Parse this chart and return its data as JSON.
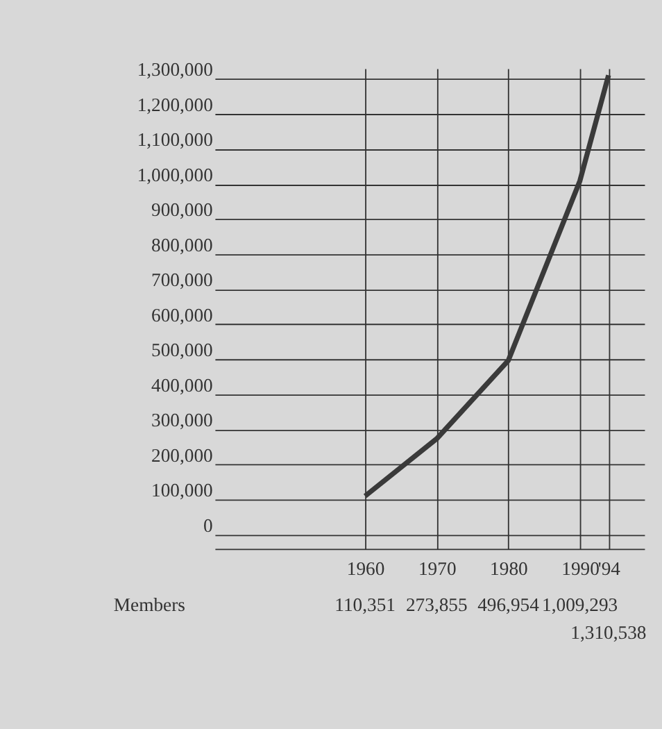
{
  "chart_data": {
    "type": "line",
    "x": [
      1960,
      1970,
      1980,
      1990,
      1994
    ],
    "series": [
      {
        "color": "#3a3a3a",
        "values": [
          110351,
          273855,
          496954,
          1009293,
          1310538
        ]
      }
    ],
    "value_labels": [
      "110,351",
      "273,855",
      "496,954",
      "1,009,293",
      "1,310,538"
    ],
    "annotations": [
      "Members"
    ],
    "xlim": [
      1939,
      1999
    ],
    "xticks": [
      1960,
      1970,
      1980,
      1990,
      {
        "value": 1994,
        "label": "'94"
      }
    ],
    "ylim": [
      -40000,
      1330000
    ],
    "yticks": [
      0,
      {
        "value": 100000,
        "label": "100,000"
      },
      {
        "value": 200000,
        "label": "200,000"
      },
      {
        "value": 300000,
        "label": "300,000"
      },
      {
        "value": 400000,
        "label": "400,000"
      },
      {
        "value": 500000,
        "label": "500,000"
      },
      {
        "value": 600000,
        "label": "600,000"
      },
      {
        "value": 700000,
        "label": "700,000"
      },
      {
        "value": 800000,
        "label": "800,000"
      },
      {
        "value": 900000,
        "label": "900,000"
      },
      {
        "value": 1000000,
        "label": "1,000,000"
      },
      {
        "value": 1100000,
        "label": "1,100,000"
      },
      {
        "value": 1200000,
        "label": "1,200,000"
      },
      {
        "value": 1300000,
        "label": "1,300,000"
      }
    ],
    "grid": true,
    "marker": "none",
    "line_style": "solid"
  }
}
